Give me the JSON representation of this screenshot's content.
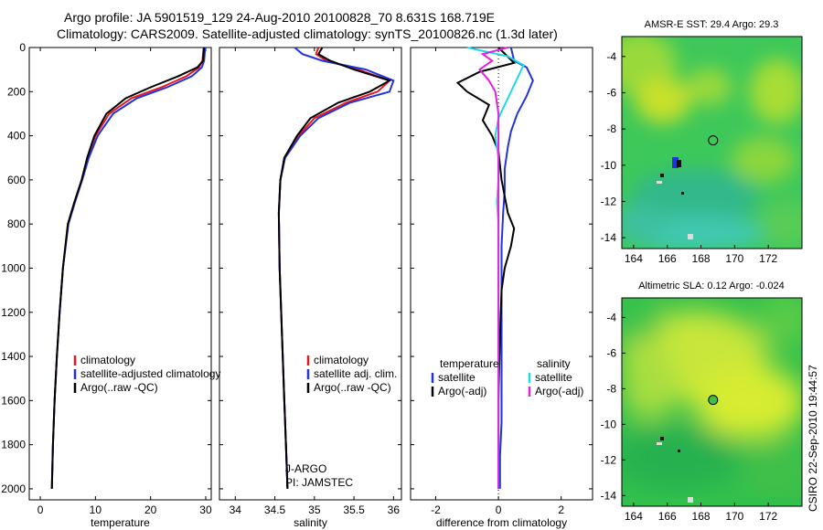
{
  "title": {
    "line1": "Argo profile: JA 5901519_129 24-Aug-2010 20100828_70 8.631S 168.719E",
    "line2": "Climatology: CARS2009. Satellite-adjusted climatology: synTS_20100826.nc (1.3d later)"
  },
  "side_label": "CSIRO 22-Sep-2010 19:44:57",
  "colors": {
    "climatology": "#e8161d",
    "satellite": "#2233dd",
    "argo": "#000000",
    "cyan": "#1fd9e6",
    "magenta": "#e61fe0"
  },
  "chart_data": [
    {
      "type": "line",
      "xlabel": "temperature",
      "xlim": [
        -2,
        31
      ],
      "xticks": [
        "0",
        "10",
        "20",
        "30"
      ],
      "xtick_values": [
        0,
        10,
        20,
        30
      ],
      "ylim": [
        2050,
        0
      ],
      "yticks": [
        "0",
        "200",
        "400",
        "600",
        "800",
        "1000",
        "1200",
        "1400",
        "1600",
        "1800",
        "2000"
      ],
      "ytick_values": [
        0,
        200,
        400,
        600,
        800,
        1000,
        1200,
        1400,
        1600,
        1800,
        2000
      ],
      "legend": [
        "climatology",
        "satellite-adjusted climatology",
        "Argo(..raw -QC)"
      ],
      "series": [
        {
          "name": "climatology",
          "color": "#e8161d",
          "x": [
            29.6,
            29.4,
            28.8,
            26.5,
            22.0,
            16.5,
            12.5,
            10.0,
            8.6,
            7.5,
            6.2,
            5.0,
            4.1,
            3.5,
            3.0,
            2.6,
            2.3,
            2.1
          ],
          "y": [
            0,
            60,
            90,
            130,
            180,
            230,
            300,
            400,
            500,
            600,
            700,
            800,
            1000,
            1200,
            1400,
            1600,
            1800,
            2000
          ]
        },
        {
          "name": "satellite-adjusted climatology",
          "color": "#2233dd",
          "x": [
            29.9,
            29.7,
            29.3,
            27.5,
            23.0,
            17.5,
            13.2,
            10.4,
            8.8,
            7.6,
            6.3,
            5.1,
            4.1,
            3.5,
            3.0,
            2.6,
            2.3,
            2.1
          ],
          "y": [
            0,
            60,
            90,
            130,
            180,
            230,
            300,
            400,
            500,
            600,
            700,
            800,
            1000,
            1200,
            1400,
            1600,
            1800,
            2000
          ]
        },
        {
          "name": "Argo(..raw -QC)",
          "color": "#000000",
          "x": [
            29.7,
            29.5,
            28.5,
            25.0,
            20.0,
            15.5,
            12.0,
            9.8,
            8.5,
            7.5,
            6.2,
            5.0,
            4.1,
            3.5,
            3.0,
            2.6,
            2.3,
            2.1
          ],
          "y": [
            0,
            60,
            90,
            130,
            180,
            230,
            300,
            400,
            500,
            600,
            700,
            800,
            1000,
            1200,
            1400,
            1600,
            1800,
            2000
          ]
        }
      ]
    },
    {
      "type": "line",
      "xlabel": "salinity",
      "xlim": [
        33.8,
        36.1
      ],
      "xticks": [
        "34",
        "34.5",
        "35",
        "35.5",
        "36"
      ],
      "xtick_values": [
        34,
        34.5,
        35,
        35.5,
        36
      ],
      "ylim": [
        2050,
        0
      ],
      "legend": [
        "climatology",
        "satellite adj. clim.",
        "Argo(..raw -QC)"
      ],
      "annotation": [
        "J-ARGO",
        "PI: JAMSTEC"
      ],
      "series": [
        {
          "name": "climatology",
          "color": "#e8161d",
          "x": [
            35.05,
            35.02,
            35.15,
            35.55,
            35.95,
            35.8,
            35.4,
            35.0,
            34.8,
            34.62,
            34.57,
            34.55,
            34.56,
            34.58,
            34.6,
            34.62,
            34.64,
            34.66
          ],
          "y": [
            0,
            30,
            60,
            100,
            150,
            200,
            250,
            320,
            400,
            500,
            600,
            750,
            1000,
            1200,
            1400,
            1600,
            1800,
            2000
          ]
        },
        {
          "name": "satellite adj. clim.",
          "color": "#2233dd",
          "x": [
            34.75,
            34.85,
            35.1,
            35.65,
            36.0,
            35.95,
            35.45,
            35.05,
            34.82,
            34.63,
            34.57,
            34.55,
            34.56,
            34.58,
            34.6,
            34.62,
            34.64,
            34.66
          ],
          "y": [
            0,
            30,
            60,
            100,
            150,
            200,
            250,
            320,
            400,
            500,
            600,
            750,
            1000,
            1200,
            1400,
            1600,
            1800,
            2000
          ]
        },
        {
          "name": "Argo(..raw -QC)",
          "color": "#000000",
          "x": [
            35.1,
            35.05,
            35.2,
            35.5,
            35.95,
            35.7,
            35.3,
            34.95,
            34.78,
            34.62,
            34.57,
            34.55,
            34.56,
            34.58,
            34.6,
            34.62,
            34.64,
            34.66
          ],
          "y": [
            0,
            30,
            60,
            100,
            150,
            200,
            250,
            320,
            400,
            500,
            600,
            750,
            1000,
            1200,
            1400,
            1600,
            1800,
            2000
          ]
        }
      ]
    },
    {
      "type": "line",
      "xlabel": "difference from climatology",
      "xlim": [
        -2.8,
        3.0
      ],
      "xticks": [
        "-2",
        "0",
        "2"
      ],
      "xtick_values": [
        -2,
        0,
        2
      ],
      "ylim": [
        2050,
        0
      ],
      "legend_left_title": "temperature",
      "legend_left": [
        "satellite",
        "Argo(-adj)"
      ],
      "legend_right_title": "salinity",
      "legend_right": [
        "satellite",
        "Argo(-adj)"
      ],
      "series": [
        {
          "name": "satellite",
          "color": "#2233dd",
          "x": [
            0.4,
            0.5,
            0.9,
            1.1,
            0.9,
            0.6,
            0.4,
            0.3,
            0.2,
            0.2,
            0.15,
            0.1,
            0.1,
            0.1,
            0.1,
            0.1,
            0.05,
            0.05
          ],
          "y": [
            0,
            60,
            90,
            150,
            220,
            300,
            380,
            450,
            550,
            650,
            750,
            900,
            1100,
            1300,
            1500,
            1700,
            1850,
            2000
          ]
        },
        {
          "name": "Argo(-adj)",
          "color": "#000000",
          "x": [
            0.0,
            0.5,
            -0.6,
            -1.3,
            -1.0,
            -0.3,
            -0.5,
            -0.2,
            0.0,
            0.1,
            0.3,
            0.5,
            0.4,
            0.2,
            0.1,
            0.05,
            0.0,
            0.0
          ],
          "y": [
            0,
            70,
            110,
            160,
            200,
            260,
            330,
            400,
            470,
            600,
            750,
            820,
            900,
            1000,
            1100,
            1300,
            1600,
            2000
          ]
        },
        {
          "name": "satellite",
          "color": "#1fd9e6",
          "x": [
            -1.0,
            0.3,
            0.8,
            0.6,
            0.4,
            0.2,
            0.0,
            -0.1,
            0.0,
            0.0,
            -0.05,
            0.0,
            0.0,
            0.0,
            0.0,
            0.0,
            0.0,
            0.0
          ],
          "y": [
            0,
            40,
            80,
            140,
            200,
            260,
            320,
            400,
            500,
            600,
            700,
            800,
            1000,
            1200,
            1400,
            1600,
            1800,
            2000
          ]
        },
        {
          "name": "Argo(-adj)",
          "color": "#e61fe0",
          "x": [
            0.3,
            -0.5,
            -0.2,
            -0.6,
            -0.3,
            -0.1,
            0.0,
            0.0,
            0.0,
            0.0,
            0.0,
            0.0
          ],
          "y": [
            0,
            30,
            60,
            100,
            150,
            200,
            300,
            400,
            600,
            800,
            1200,
            2000
          ]
        }
      ]
    },
    {
      "type": "heatmap",
      "title": "AMSR-E SST: 29.4 Argo: 29.3",
      "xlim": [
        163.3,
        174
      ],
      "xticks": [
        "164",
        "166",
        "168",
        "170",
        "172"
      ],
      "xtick_values": [
        164,
        166,
        168,
        170,
        172
      ],
      "ylim": [
        -14.6,
        -2.9
      ],
      "yticks": [
        "-4",
        "-6",
        "-8",
        "-10",
        "-12",
        "-14"
      ],
      "ytick_values": [
        -4,
        -6,
        -8,
        -10,
        -12,
        -14
      ],
      "marker": {
        "lon": 168.72,
        "lat": -8.63
      }
    },
    {
      "type": "heatmap",
      "title": "Altimetric SLA: 0.12 Argo: -0.024",
      "xlim": [
        163.3,
        174
      ],
      "xticks": [
        "164",
        "166",
        "168",
        "170",
        "172"
      ],
      "xtick_values": [
        164,
        166,
        168,
        170,
        172
      ],
      "ylim": [
        -14.6,
        -2.9
      ],
      "yticks": [
        "-4",
        "-6",
        "-8",
        "-10",
        "-12",
        "-14"
      ],
      "ytick_values": [
        -4,
        -6,
        -8,
        -10,
        -12,
        -14
      ],
      "marker": {
        "lon": 168.72,
        "lat": -8.63
      }
    }
  ]
}
